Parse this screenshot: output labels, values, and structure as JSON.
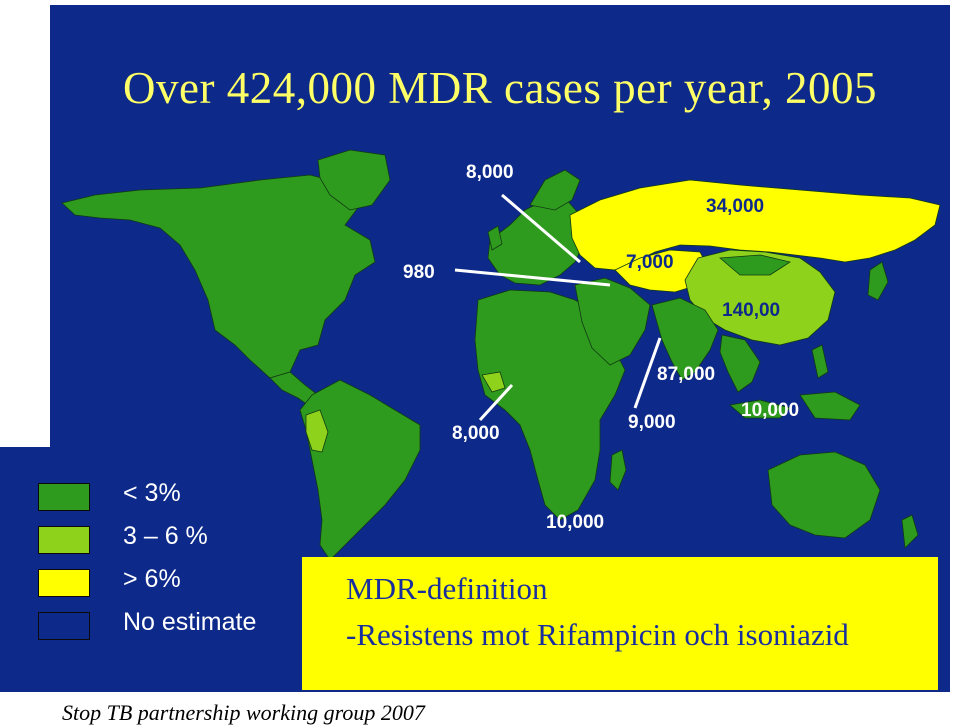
{
  "title": "Over 424,000 MDR cases per year, 2005",
  "colors": {
    "background": "#0d2a8a",
    "title": "#ffff66",
    "below_3": "#2e9b1e",
    "between_3_6": "#8ed21c",
    "above_6": "#ffff00",
    "no_estimate": "#0d2a8a"
  },
  "map_labels": [
    {
      "id": "eastern-europe",
      "text": "8,000"
    },
    {
      "id": "russia",
      "text": "34,000"
    },
    {
      "id": "western-europe",
      "text": "980"
    },
    {
      "id": "central-asia",
      "text": "7,000"
    },
    {
      "id": "china",
      "text": "140,00"
    },
    {
      "id": "india",
      "text": "87,000"
    },
    {
      "id": "southeast-asia",
      "text": "10,000"
    },
    {
      "id": "east-mediterranean",
      "text": "9,000"
    },
    {
      "id": "west-africa",
      "text": "8,000"
    },
    {
      "id": "southern-africa",
      "text": "10,000"
    }
  ],
  "legend": [
    {
      "label": "< 3%",
      "color": "#2e9b1e"
    },
    {
      "label": "3 – 6 %",
      "color": "#8ed21c"
    },
    {
      "label": "> 6%",
      "color": "#ffff00"
    },
    {
      "label": "No estimate",
      "color": "#0d2a8a"
    }
  ],
  "definition": {
    "title": "MDR-definition",
    "text": "-Resistens mot Rifampicin och isoniazid"
  },
  "source": "Stop TB partnership working group 2007"
}
